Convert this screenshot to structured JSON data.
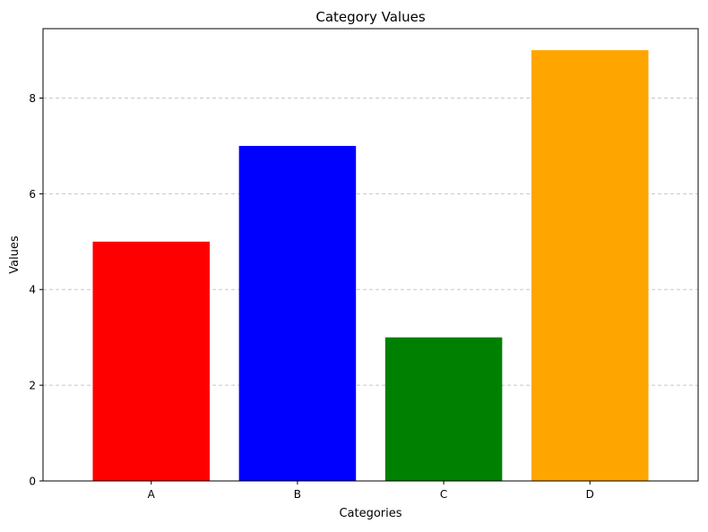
{
  "chart_data": {
    "type": "bar",
    "title": "Category Values",
    "xlabel": "Categories",
    "ylabel": "Values",
    "categories": [
      "A",
      "B",
      "C",
      "D"
    ],
    "values": [
      5,
      7,
      3,
      9
    ],
    "colors": [
      "#ff0000",
      "#0000ff",
      "#008000",
      "#ffa500"
    ],
    "ylim": [
      0,
      9.45
    ],
    "yticks": [
      0,
      2,
      4,
      6,
      8
    ],
    "grid": {
      "axis": "y",
      "style": "dashed",
      "color": "#c8c8c8"
    }
  }
}
